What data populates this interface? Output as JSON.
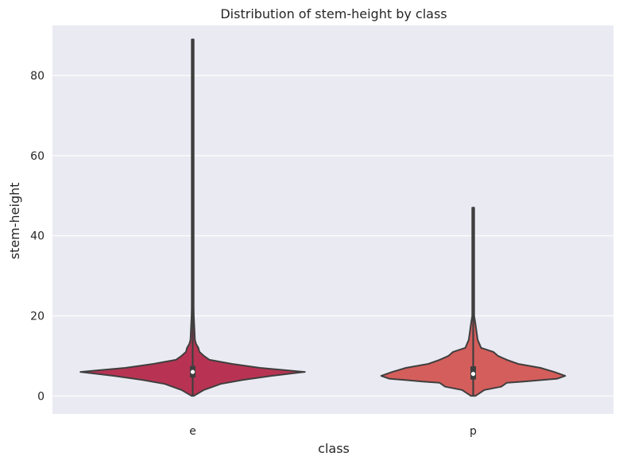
{
  "chart_data": {
    "type": "violin",
    "title": "Distribution of stem-height by class",
    "xlabel": "class",
    "ylabel": "stem-height",
    "categories": [
      "e",
      "p"
    ],
    "ylim": [
      -4.5,
      92.5
    ],
    "y_ticks": [
      0,
      20,
      40,
      60,
      80
    ],
    "grid": true,
    "style": {
      "background": "#EAEAF2",
      "grid_color": "#FFFFFF",
      "outline_color": "#3F3F3F"
    },
    "series": [
      {
        "category": "e",
        "color": "#B83353",
        "min": 0,
        "max": 89,
        "q1": 4.6,
        "median": 6.0,
        "q3": 7.5,
        "density": [
          [
            0,
            0.01
          ],
          [
            1.5,
            0.1
          ],
          [
            3,
            0.25
          ],
          [
            4,
            0.45
          ],
          [
            5,
            0.7
          ],
          [
            6,
            1.0
          ],
          [
            7,
            0.6
          ],
          [
            8,
            0.35
          ],
          [
            9,
            0.15
          ],
          [
            10,
            0.1
          ],
          [
            11,
            0.06
          ],
          [
            12,
            0.05
          ],
          [
            13,
            0.03
          ],
          [
            14,
            0.02
          ],
          [
            17,
            0.015
          ],
          [
            20,
            0.01
          ],
          [
            22,
            0.008
          ],
          [
            30,
            0.005
          ],
          [
            89,
            0.005
          ]
        ]
      },
      {
        "category": "p",
        "color": "#D45E5B",
        "min": 0,
        "max": 47,
        "q1": 4.1,
        "median": 5.5,
        "q3": 7.4,
        "density": [
          [
            0,
            0.02
          ],
          [
            1.5,
            0.1
          ],
          [
            2.3,
            0.25
          ],
          [
            3.3,
            0.3
          ],
          [
            3.6,
            0.45
          ],
          [
            4.3,
            0.75
          ],
          [
            5,
            0.82
          ],
          [
            6,
            0.72
          ],
          [
            7,
            0.6
          ],
          [
            8,
            0.4
          ],
          [
            9,
            0.3
          ],
          [
            10,
            0.22
          ],
          [
            11,
            0.18
          ],
          [
            12,
            0.07
          ],
          [
            14,
            0.04
          ],
          [
            16,
            0.03
          ],
          [
            18,
            0.02
          ],
          [
            20,
            0.008
          ],
          [
            47,
            0.005
          ]
        ]
      }
    ]
  }
}
